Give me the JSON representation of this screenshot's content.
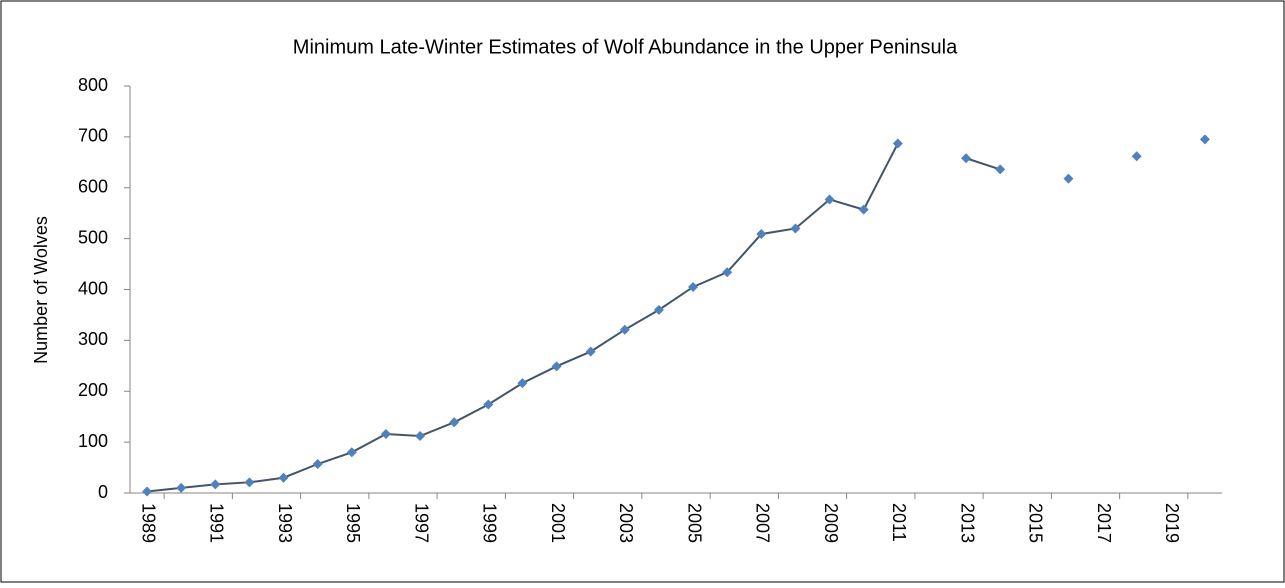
{
  "chart_data": {
    "type": "line",
    "title": "Minimum Late-Winter Estimates of Wolf Abundance in the Upper Peninsula",
    "y_label": "Number of Wolves",
    "categories": [
      "1989",
      null,
      "1991",
      null,
      "1993",
      null,
      "1995",
      null,
      "1997",
      null,
      "1999",
      null,
      "2001",
      null,
      "2003",
      null,
      "2005",
      null,
      "2007",
      null,
      "2009",
      null,
      "2011",
      null,
      "2013",
      null,
      "2015",
      null,
      "2017",
      null,
      "2019",
      null
    ],
    "series": [
      {
        "name": "Wolves",
        "color": "#4f81bd",
        "line_color": "#44546a",
        "values": [
          3,
          10,
          17,
          21,
          30,
          57,
          80,
          116,
          112,
          139,
          174,
          216,
          249,
          278,
          321,
          360,
          405,
          434,
          509,
          520,
          577,
          557,
          687,
          null,
          658,
          636,
          null,
          618,
          null,
          662,
          null,
          695
        ]
      }
    ],
    "ylim": [
      0,
      800
    ],
    "yticks": [
      0,
      100,
      200,
      300,
      400,
      500,
      600,
      700,
      800
    ]
  }
}
